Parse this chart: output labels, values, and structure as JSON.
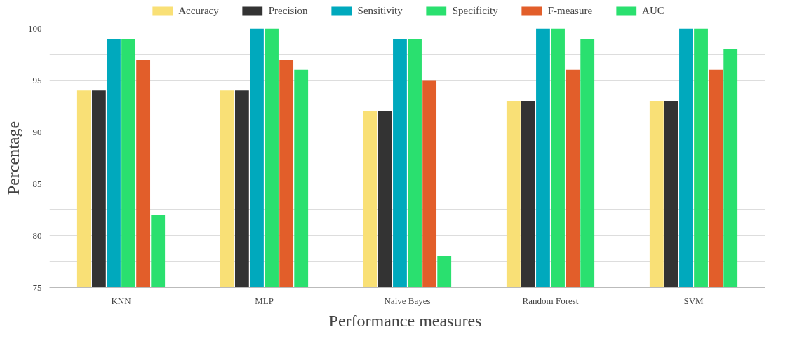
{
  "chart_data": {
    "type": "bar",
    "xlabel": "Performance  measures",
    "ylabel": "Percentage",
    "categories": [
      "KNN",
      "MLP",
      "Naive Bayes",
      "Random Forest",
      "SVM"
    ],
    "series": [
      {
        "name": "Accuracy",
        "color": "#f9e076",
        "values": [
          94,
          94,
          92,
          93,
          93
        ]
      },
      {
        "name": "Precision",
        "color": "#333333",
        "values": [
          94,
          94,
          92,
          93,
          93
        ]
      },
      {
        "name": "Sensitivity",
        "color": "#00a9bd",
        "values": [
          99,
          100,
          99,
          100,
          100
        ]
      },
      {
        "name": "Specificity",
        "color": "#2ae06f",
        "values": [
          99,
          100,
          99,
          100,
          100
        ]
      },
      {
        "name": "F-measure",
        "color": "#e25e2a",
        "values": [
          97,
          97,
          95,
          96,
          96
        ]
      },
      {
        "name": "AUC",
        "color": "#2ae06f",
        "values": [
          82,
          96,
          78,
          99,
          98
        ]
      }
    ],
    "ylim": [
      75,
      100
    ],
    "yticks": [
      75,
      {
        "value": 77.5,
        "label": null
      },
      80,
      {
        "value": 82.5,
        "label": null
      },
      85,
      {
        "value": 87.5,
        "label": null
      },
      90,
      {
        "value": 92.5,
        "label": null
      },
      95,
      {
        "value": 97.5,
        "label": null
      },
      100
    ],
    "grid": "y",
    "legend": "top"
  }
}
